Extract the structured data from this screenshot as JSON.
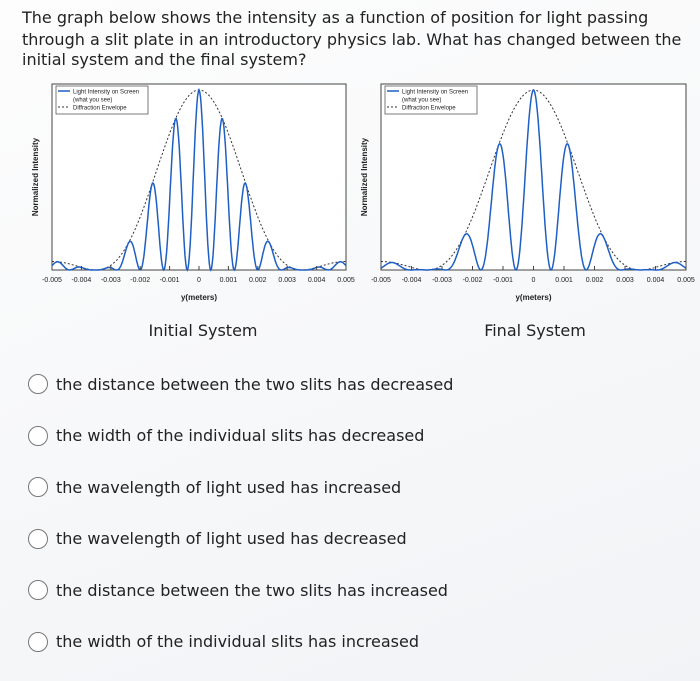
{
  "question": {
    "lines": [
      "The graph below shows the intensity as a function of position for light passing",
      "through a slit plate in an introductory physics lab. What has changed between the",
      "initial system and the final system?"
    ]
  },
  "figures": [
    {
      "legend": [
        "Light Intensity on Screen",
        "(what you see)",
        "Diffraction Envelope"
      ],
      "y_label": "Normalized Intensity",
      "x_label": "y(meters)",
      "xlim": [
        -0.005,
        0.005
      ],
      "xticks": [
        -0.005,
        -0.004,
        -0.003,
        -0.002,
        -0.001,
        0,
        0.001,
        0.002,
        0.003,
        0.004,
        0.005
      ],
      "caption": "Initial System"
    },
    {
      "legend": [
        "Light Intensity on Screen",
        "(what you see)",
        "Diffraction Envelope"
      ],
      "y_label": "Normalized Intensity",
      "x_label": "y(meters)",
      "xlim": [
        -0.005,
        0.005
      ],
      "xticks": [
        -0.005,
        -0.004,
        -0.003,
        -0.002,
        -0.001,
        0,
        0.001,
        0.002,
        0.003,
        0.004,
        0.005
      ],
      "caption": "Final System"
    }
  ],
  "options": [
    "the distance between the two slits has decreased",
    "the width of the individual slits has decreased",
    "the wavelength of light used has increased",
    "the wavelength of light used has decreased",
    "the distance between the two slits has increased",
    "the width of the individual slits has increased"
  ]
}
